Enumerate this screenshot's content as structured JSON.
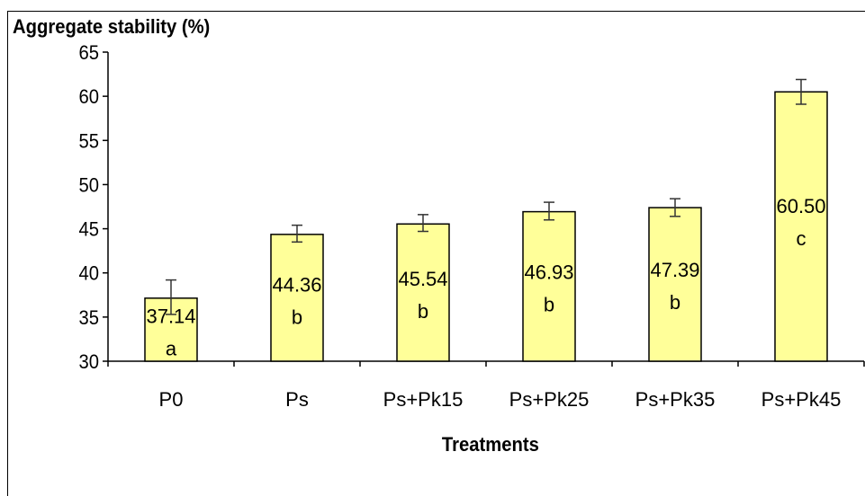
{
  "chart_data": {
    "type": "bar",
    "title": "Aggregate stability (%)",
    "xlabel": "Treatments",
    "ylabel": "",
    "ylim": [
      30,
      65
    ],
    "yticks": [
      30,
      35,
      40,
      45,
      50,
      55,
      60,
      65
    ],
    "categories": [
      "P0",
      "Ps",
      "Ps+Pk15",
      "Ps+Pk25",
      "Ps+Pk35",
      "Ps+Pk45"
    ],
    "values": [
      37.14,
      44.36,
      45.54,
      46.93,
      47.39,
      60.5
    ],
    "value_labels": [
      "37.14",
      "44.36",
      "45.54",
      "46.93",
      "47.39",
      "60.50"
    ],
    "letters": [
      "a",
      "b",
      "b",
      "b",
      "b",
      "c"
    ],
    "error_low": [
      35.3,
      43.5,
      44.7,
      46.0,
      46.4,
      59.1
    ],
    "error_high": [
      39.2,
      45.4,
      46.6,
      48.0,
      48.4,
      61.9
    ],
    "grid": false,
    "legend": "none",
    "bar_color": "#ffff99",
    "bar_edge_color": "#000000"
  }
}
